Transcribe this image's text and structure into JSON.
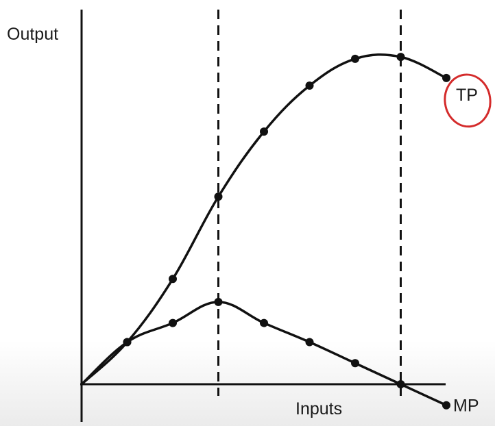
{
  "chart_data": {
    "type": "line",
    "title": "",
    "ylabel": "Output",
    "xlabel": "Inputs",
    "x": [
      0,
      1,
      2,
      3,
      4,
      5,
      6,
      7,
      8
    ],
    "series": [
      {
        "name": "TP",
        "color": "#111111",
        "values": [
          0,
          2.2,
          5.5,
          9.8,
          13.2,
          15.6,
          17.0,
          17.1,
          16.0
        ]
      },
      {
        "name": "MP",
        "color": "#111111",
        "values": [
          0,
          2.2,
          3.2,
          4.3,
          3.2,
          2.2,
          1.1,
          0,
          -1.1
        ]
      }
    ],
    "dashed_verticals": [
      3,
      7
    ],
    "ylim": [
      -2,
      18.5
    ],
    "xlim": [
      0,
      8
    ],
    "highlight": {
      "series": "TP",
      "marker": "circle",
      "color": "#d42b2b"
    },
    "grid": false
  }
}
